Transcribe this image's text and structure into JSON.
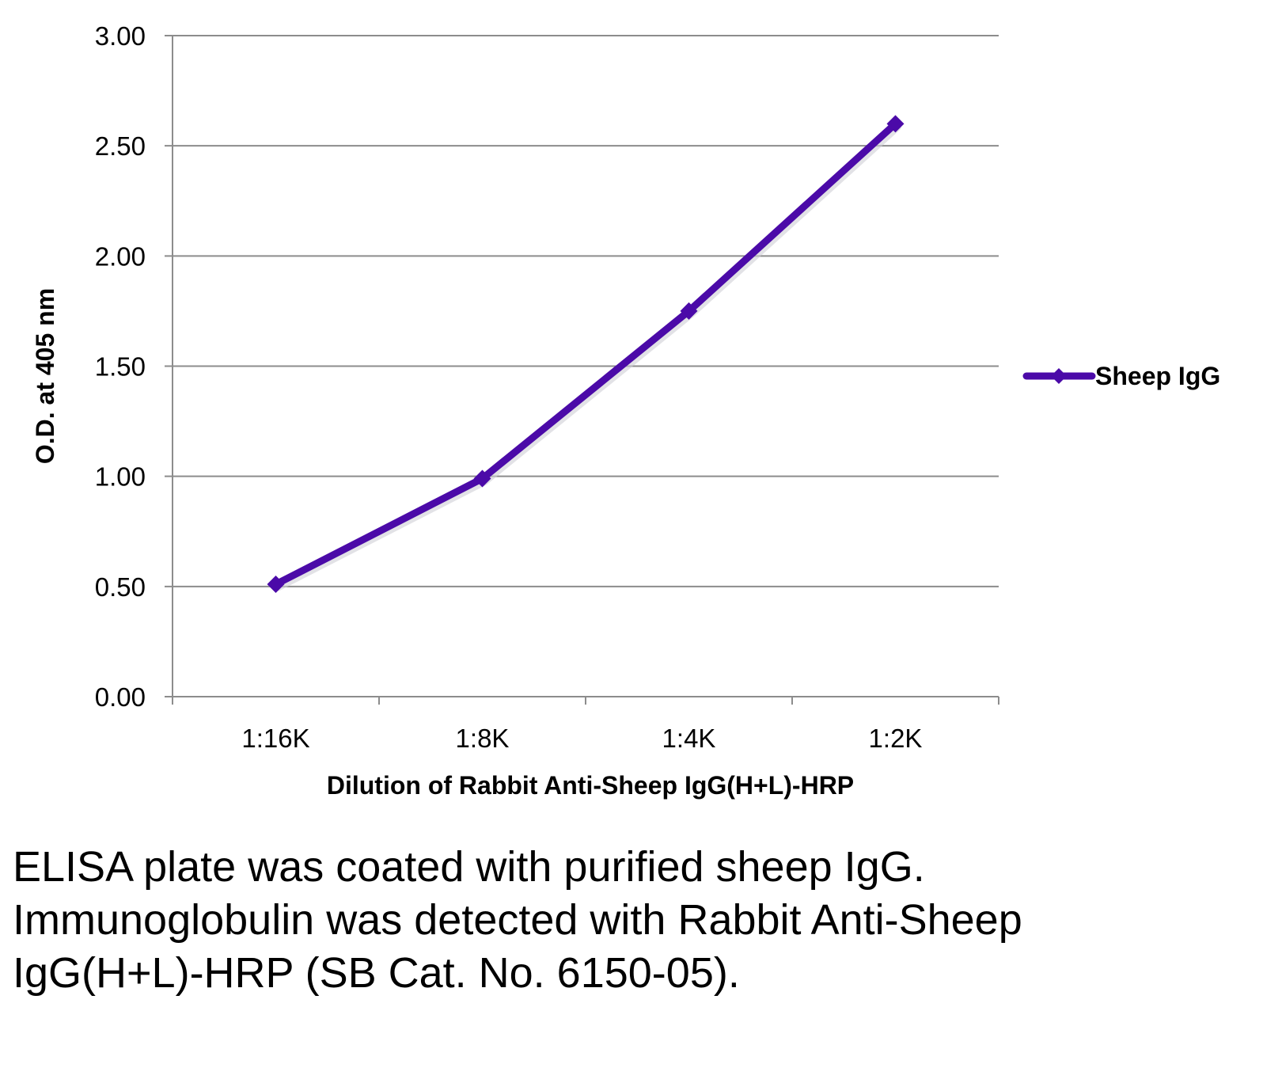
{
  "chart_data": {
    "type": "line",
    "categories": [
      "1:16K",
      "1:8K",
      "1:4K",
      "1:2K"
    ],
    "series": [
      {
        "name": "Sheep IgG",
        "values": [
          0.51,
          0.99,
          1.75,
          2.6
        ],
        "color": "#4b0aa8",
        "marker": "diamond"
      }
    ],
    "xlabel": "Dilution of Rabbit Anti-Sheep IgG(H+L)-HRP",
    "ylabel": "O.D. at 405 nm",
    "ylim": [
      0,
      3
    ],
    "yticks": [
      "0.00",
      "0.50",
      "1.00",
      "1.50",
      "2.00",
      "2.50",
      "3.00"
    ],
    "grid": true,
    "legend_position": "right"
  },
  "caption": "ELISA plate was coated with purified sheep IgG.  Immunoglobulin was detected with Rabbit Anti-Sheep IgG(H+L)-HRP (SB Cat. No. 6150-05).",
  "colors": {
    "gridline": "#8c8c8c",
    "axis": "#8c8c8c"
  }
}
